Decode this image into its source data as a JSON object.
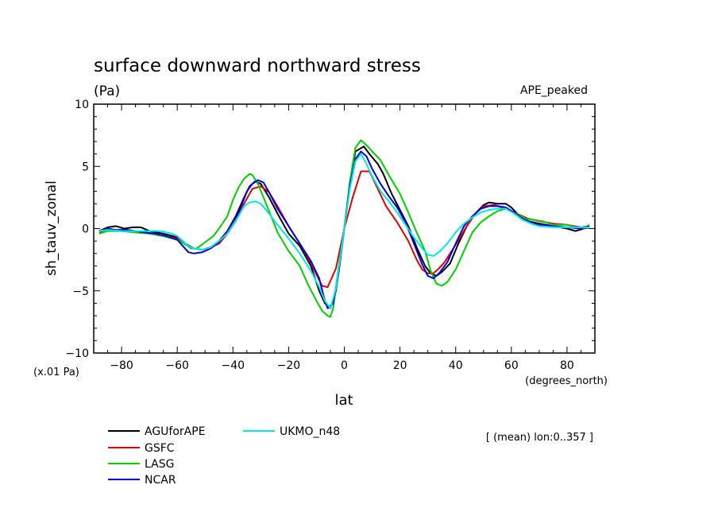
{
  "chart_data": {
    "type": "line",
    "title": "surface downward northward stress",
    "subtitle": "(Pa)",
    "experiment": "APE_peaked",
    "xlabel": "lat",
    "ylabel": "sh_tauv_zonal",
    "x_unit": "(degrees_north)",
    "y_unit": "(x.01 Pa)",
    "averaging_note": "[ (mean) lon:0..357 ]",
    "xlim": [
      -90,
      90
    ],
    "ylim": [
      -10,
      10
    ],
    "x_ticks": [
      -80,
      -60,
      -40,
      -20,
      0,
      20,
      40,
      60,
      80
    ],
    "x_tick_labels": [
      "−80",
      "−60",
      "−40",
      "−20",
      "0",
      "20",
      "40",
      "60",
      "80"
    ],
    "y_ticks": [
      -10,
      -5,
      0,
      5,
      10
    ],
    "y_tick_labels": [
      "−10",
      "−5",
      "0",
      "5",
      "10"
    ],
    "grid": false,
    "legend_position": "bottom-left",
    "series": [
      {
        "name": "AGUforAPE",
        "color": "#000000",
        "points": [
          [
            -88,
            -0.2
          ],
          [
            -85,
            0.1
          ],
          [
            -82,
            0.2
          ],
          [
            -79,
            0.0
          ],
          [
            -76,
            0.1
          ],
          [
            -73,
            0.1
          ],
          [
            -70,
            -0.2
          ],
          [
            -65,
            -0.4
          ],
          [
            -60,
            -0.7
          ],
          [
            -57,
            -1.3
          ],
          [
            -54,
            -1.6
          ],
          [
            -51,
            -1.7
          ],
          [
            -48,
            -1.5
          ],
          [
            -45,
            -1.0
          ],
          [
            -42,
            -0.2
          ],
          [
            -39,
            1.0
          ],
          [
            -36,
            2.5
          ],
          [
            -34,
            3.4
          ],
          [
            -32,
            3.8
          ],
          [
            -30,
            3.6
          ],
          [
            -27,
            2.5
          ],
          [
            -24,
            1.2
          ],
          [
            -20,
            -0.4
          ],
          [
            -16,
            -1.4
          ],
          [
            -12,
            -3.0
          ],
          [
            -9,
            -5.0
          ],
          [
            -7,
            -6.0
          ],
          [
            -5,
            -6.4
          ],
          [
            -3,
            -5.0
          ],
          [
            0,
            0.0
          ],
          [
            2,
            3.5
          ],
          [
            4,
            6.2
          ],
          [
            7,
            6.6
          ],
          [
            9,
            6.0
          ],
          [
            12,
            5.2
          ],
          [
            14,
            4.4
          ],
          [
            17,
            2.8
          ],
          [
            20,
            1.5
          ],
          [
            23,
            0.2
          ],
          [
            26,
            -1.5
          ],
          [
            29,
            -3.0
          ],
          [
            31,
            -3.6
          ],
          [
            33,
            -3.8
          ],
          [
            35,
            -3.5
          ],
          [
            38,
            -2.8
          ],
          [
            41,
            -1.2
          ],
          [
            44,
            0.2
          ],
          [
            47,
            1.2
          ],
          [
            50,
            1.9
          ],
          [
            52,
            2.1
          ],
          [
            55,
            2.0
          ],
          [
            58,
            2.0
          ],
          [
            60,
            1.7
          ],
          [
            63,
            1.0
          ],
          [
            66,
            0.6
          ],
          [
            70,
            0.4
          ],
          [
            75,
            0.2
          ],
          [
            80,
            0.0
          ],
          [
            83,
            -0.2
          ],
          [
            86,
            0.0
          ],
          [
            88,
            0.1
          ]
        ]
      },
      {
        "name": "GSFC",
        "color": "#e00000",
        "points": [
          [
            -88,
            -0.3
          ],
          [
            -85,
            -0.1
          ],
          [
            -80,
            -0.2
          ],
          [
            -75,
            -0.3
          ],
          [
            -70,
            -0.4
          ],
          [
            -65,
            -0.6
          ],
          [
            -60,
            -0.8
          ],
          [
            -57,
            -1.2
          ],
          [
            -54,
            -1.6
          ],
          [
            -51,
            -1.7
          ],
          [
            -48,
            -1.5
          ],
          [
            -45,
            -1.2
          ],
          [
            -42,
            -0.4
          ],
          [
            -39,
            0.6
          ],
          [
            -36,
            2.0
          ],
          [
            -33,
            3.2
          ],
          [
            -30,
            3.4
          ],
          [
            -27,
            2.9
          ],
          [
            -24,
            1.8
          ],
          [
            -20,
            0.2
          ],
          [
            -16,
            -1.2
          ],
          [
            -12,
            -2.8
          ],
          [
            -8,
            -4.6
          ],
          [
            -6,
            -4.7
          ],
          [
            -3,
            -3.2
          ],
          [
            0,
            0.0
          ],
          [
            3,
            2.5
          ],
          [
            6,
            4.6
          ],
          [
            9,
            4.6
          ],
          [
            12,
            3.2
          ],
          [
            15,
            1.8
          ],
          [
            19,
            0.5
          ],
          [
            23,
            -1.0
          ],
          [
            26,
            -2.5
          ],
          [
            28,
            -3.3
          ],
          [
            30,
            -3.6
          ],
          [
            32,
            -3.6
          ],
          [
            34,
            -3.2
          ],
          [
            36,
            -2.7
          ],
          [
            40,
            -1.3
          ],
          [
            44,
            0.2
          ],
          [
            47,
            1.2
          ],
          [
            50,
            1.8
          ],
          [
            54,
            1.9
          ],
          [
            58,
            1.6
          ],
          [
            62,
            1.2
          ],
          [
            66,
            0.8
          ],
          [
            70,
            0.6
          ],
          [
            75,
            0.4
          ],
          [
            80,
            0.3
          ],
          [
            85,
            0.1
          ],
          [
            88,
            0.2
          ]
        ]
      },
      {
        "name": "LASG",
        "color": "#00d000",
        "points": [
          [
            -88,
            -0.4
          ],
          [
            -85,
            -0.2
          ],
          [
            -80,
            -0.2
          ],
          [
            -75,
            -0.3
          ],
          [
            -70,
            -0.4
          ],
          [
            -65,
            -0.6
          ],
          [
            -60,
            -0.9
          ],
          [
            -57,
            -1.3
          ],
          [
            -55,
            -1.6
          ],
          [
            -53,
            -1.6
          ],
          [
            -50,
            -1.1
          ],
          [
            -47,
            -0.6
          ],
          [
            -45,
            0.0
          ],
          [
            -42,
            1.0
          ],
          [
            -40,
            2.3
          ],
          [
            -38,
            3.3
          ],
          [
            -36,
            4.0
          ],
          [
            -34,
            4.4
          ],
          [
            -33,
            4.3
          ],
          [
            -31,
            3.6
          ],
          [
            -29,
            2.5
          ],
          [
            -27,
            1.4
          ],
          [
            -24,
            -0.3
          ],
          [
            -20,
            -1.8
          ],
          [
            -16,
            -3.0
          ],
          [
            -13,
            -4.5
          ],
          [
            -10,
            -5.8
          ],
          [
            -8,
            -6.6
          ],
          [
            -6,
            -7.0
          ],
          [
            -5,
            -7.1
          ],
          [
            -4,
            -6.4
          ],
          [
            -2,
            -3.0
          ],
          [
            0,
            0.0
          ],
          [
            2,
            3.8
          ],
          [
            4,
            6.5
          ],
          [
            6,
            7.1
          ],
          [
            8,
            6.7
          ],
          [
            10,
            6.2
          ],
          [
            13,
            5.5
          ],
          [
            16,
            4.3
          ],
          [
            20,
            2.8
          ],
          [
            23,
            1.3
          ],
          [
            26,
            -0.3
          ],
          [
            29,
            -1.8
          ],
          [
            31,
            -3.4
          ],
          [
            33,
            -4.4
          ],
          [
            35,
            -4.6
          ],
          [
            37,
            -4.3
          ],
          [
            40,
            -3.3
          ],
          [
            43,
            -1.8
          ],
          [
            46,
            -0.3
          ],
          [
            49,
            0.5
          ],
          [
            52,
            1.0
          ],
          [
            55,
            1.4
          ],
          [
            58,
            1.6
          ],
          [
            62,
            1.2
          ],
          [
            65,
            0.8
          ],
          [
            68,
            0.7
          ],
          [
            71,
            0.6
          ],
          [
            75,
            0.3
          ],
          [
            80,
            0.3
          ],
          [
            83,
            0.1
          ],
          [
            86,
            0.0
          ],
          [
            88,
            0.3
          ]
        ]
      },
      {
        "name": "NCAR",
        "color": "#0000e0",
        "points": [
          [
            -88,
            -0.2
          ],
          [
            -85,
            0.0
          ],
          [
            -82,
            -0.1
          ],
          [
            -78,
            -0.1
          ],
          [
            -75,
            -0.2
          ],
          [
            -72,
            -0.3
          ],
          [
            -68,
            -0.4
          ],
          [
            -64,
            -0.6
          ],
          [
            -60,
            -0.9
          ],
          [
            -58,
            -1.4
          ],
          [
            -56,
            -1.9
          ],
          [
            -54,
            -2.0
          ],
          [
            -51,
            -1.9
          ],
          [
            -48,
            -1.6
          ],
          [
            -45,
            -1.1
          ],
          [
            -42,
            -0.2
          ],
          [
            -39,
            0.8
          ],
          [
            -37,
            1.8
          ],
          [
            -35,
            3.0
          ],
          [
            -33,
            3.6
          ],
          [
            -31,
            3.9
          ],
          [
            -29,
            3.7
          ],
          [
            -27,
            2.9
          ],
          [
            -24,
            1.6
          ],
          [
            -20,
            0.2
          ],
          [
            -16,
            -1.2
          ],
          [
            -12,
            -2.6
          ],
          [
            -9,
            -4.0
          ],
          [
            -7,
            -5.8
          ],
          [
            -6,
            -6.4
          ],
          [
            -4,
            -6.0
          ],
          [
            -2,
            -3.5
          ],
          [
            0,
            0.0
          ],
          [
            2,
            3.5
          ],
          [
            4,
            5.6
          ],
          [
            6,
            6.2
          ],
          [
            8,
            5.8
          ],
          [
            10,
            4.8
          ],
          [
            13,
            3.6
          ],
          [
            16,
            2.6
          ],
          [
            19,
            1.7
          ],
          [
            22,
            0.5
          ],
          [
            25,
            -1.2
          ],
          [
            28,
            -2.9
          ],
          [
            30,
            -3.8
          ],
          [
            32,
            -4.0
          ],
          [
            34,
            -3.6
          ],
          [
            37,
            -2.7
          ],
          [
            40,
            -1.2
          ],
          [
            43,
            0.2
          ],
          [
            46,
            1.0
          ],
          [
            49,
            1.6
          ],
          [
            52,
            1.8
          ],
          [
            55,
            1.8
          ],
          [
            58,
            1.7
          ],
          [
            61,
            1.3
          ],
          [
            64,
            0.8
          ],
          [
            67,
            0.5
          ],
          [
            70,
            0.3
          ],
          [
            75,
            0.2
          ],
          [
            80,
            0.1
          ],
          [
            85,
            0.0
          ],
          [
            88,
            0.2
          ]
        ]
      },
      {
        "name": "UKMO_n48",
        "color": "#00e8e8",
        "points": [
          [
            -88,
            -0.2
          ],
          [
            -85,
            -0.1
          ],
          [
            -80,
            -0.2
          ],
          [
            -75,
            -0.2
          ],
          [
            -70,
            -0.2
          ],
          [
            -66,
            -0.2
          ],
          [
            -62,
            -0.4
          ],
          [
            -60,
            -0.6
          ],
          [
            -58,
            -1.0
          ],
          [
            -56,
            -1.4
          ],
          [
            -54,
            -1.6
          ],
          [
            -51,
            -1.7
          ],
          [
            -48,
            -1.5
          ],
          [
            -45,
            -1.0
          ],
          [
            -42,
            -0.4
          ],
          [
            -40,
            0.3
          ],
          [
            -38,
            1.0
          ],
          [
            -36,
            1.8
          ],
          [
            -34,
            2.1
          ],
          [
            -32,
            2.2
          ],
          [
            -30,
            2.0
          ],
          [
            -27,
            1.2
          ],
          [
            -24,
            0.3
          ],
          [
            -20,
            -0.8
          ],
          [
            -16,
            -2.0
          ],
          [
            -12,
            -3.4
          ],
          [
            -9,
            -4.7
          ],
          [
            -7,
            -5.8
          ],
          [
            -5,
            -6.4
          ],
          [
            -3,
            -4.8
          ],
          [
            0,
            0.0
          ],
          [
            2,
            3.2
          ],
          [
            4,
            5.4
          ],
          [
            6,
            6.0
          ],
          [
            8,
            5.2
          ],
          [
            10,
            4.2
          ],
          [
            13,
            3.0
          ],
          [
            16,
            2.2
          ],
          [
            19,
            1.3
          ],
          [
            22,
            0.3
          ],
          [
            25,
            -0.7
          ],
          [
            28,
            -1.6
          ],
          [
            30,
            -2.1
          ],
          [
            32,
            -2.2
          ],
          [
            34,
            -1.9
          ],
          [
            37,
            -1.2
          ],
          [
            40,
            -0.3
          ],
          [
            43,
            0.4
          ],
          [
            46,
            0.9
          ],
          [
            49,
            1.3
          ],
          [
            52,
            1.5
          ],
          [
            55,
            1.6
          ],
          [
            58,
            1.6
          ],
          [
            61,
            1.2
          ],
          [
            64,
            0.7
          ],
          [
            67,
            0.4
          ],
          [
            70,
            0.2
          ],
          [
            75,
            0.1
          ],
          [
            80,
            0.1
          ],
          [
            85,
            0.1
          ],
          [
            88,
            0.1
          ]
        ]
      }
    ]
  }
}
